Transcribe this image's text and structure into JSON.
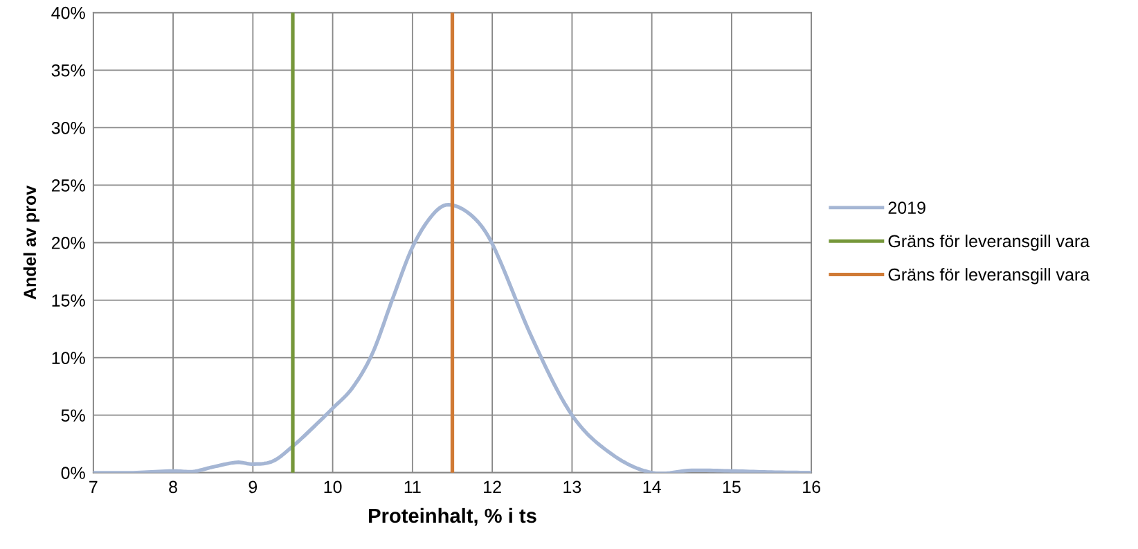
{
  "chart_data": {
    "type": "line",
    "xlabel": "Proteinhalt, % i ts",
    "ylabel": "Andel av prov",
    "xlim": [
      7,
      16
    ],
    "xticks": [
      7,
      8,
      9,
      10,
      11,
      12,
      13,
      14,
      15,
      16
    ],
    "ylim": [
      0,
      40
    ],
    "yticks": [
      {
        "value": 0,
        "label": "0%"
      },
      {
        "value": 5,
        "label": "5%"
      },
      {
        "value": 10,
        "label": "10%"
      },
      {
        "value": 15,
        "label": "15%"
      },
      {
        "value": 20,
        "label": "20%"
      },
      {
        "value": 25,
        "label": "25%"
      },
      {
        "value": 30,
        "label": "30%"
      },
      {
        "value": 35,
        "label": "35%"
      },
      {
        "value": 40,
        "label": "40%"
      }
    ],
    "grid": true,
    "legend": "right",
    "marker": "none",
    "line_style": "solid",
    "series": [
      {
        "name": "2019",
        "color": "#a5b6d4",
        "x": [
          7,
          7.5,
          8,
          8.25,
          8.5,
          8.8,
          9,
          9.25,
          9.5,
          9.75,
          10,
          10.25,
          10.5,
          10.75,
          11,
          11.25,
          11.45,
          11.75,
          12,
          12.5,
          13,
          13.5,
          14,
          14.5,
          15,
          15.5,
          16
        ],
        "values": [
          0,
          0,
          0.15,
          0.1,
          0.5,
          0.9,
          0.75,
          1.0,
          2.3,
          3.9,
          5.6,
          7.4,
          10.4,
          15.1,
          19.6,
          22.4,
          23.3,
          22.3,
          19.9,
          11.7,
          5.0,
          1.6,
          0,
          0.2,
          0.15,
          0.05,
          0
        ]
      },
      {
        "name": "Gräns för leveransgill vara",
        "color": "#76973a",
        "x": [
          9.5,
          9.5
        ],
        "values": [
          0,
          40
        ]
      },
      {
        "name": "Gräns för leveransgill vara",
        "color": "#d07a35",
        "x": [
          11.5,
          11.5
        ],
        "values": [
          0,
          40
        ]
      }
    ]
  }
}
